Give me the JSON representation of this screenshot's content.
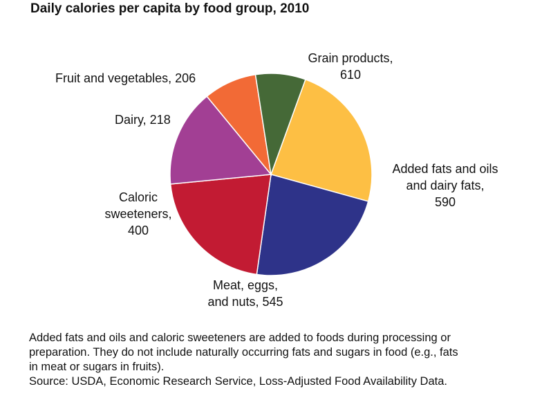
{
  "chart_data": {
    "type": "pie",
    "title": "Daily calories per capita by food group, 2010",
    "slices": [
      {
        "category": "Grain products",
        "value": 610,
        "color": "#FDBF44",
        "label_lines": [
          "Grain products,",
          "610"
        ]
      },
      {
        "category": "Added fats and oils and dairy fats",
        "value": 590,
        "color": "#2E3389",
        "label_lines": [
          "Added fats and oils",
          "and dairy fats,",
          "590"
        ]
      },
      {
        "category": "Meat, eggs, and nuts",
        "value": 545,
        "color": "#C21B33",
        "label_lines": [
          "Meat, eggs,",
          "and nuts, 545"
        ]
      },
      {
        "category": "Caloric sweeteners",
        "value": 400,
        "color": "#A23F94",
        "label_lines": [
          "Caloric",
          "sweeteners,",
          "400"
        ]
      },
      {
        "category": "Dairy",
        "value": 218,
        "color": "#F26A36",
        "label_lines": [
          "Dairy, 218"
        ]
      },
      {
        "category": "Fruit and vegetables",
        "value": 206,
        "color": "#456937",
        "label_lines": [
          "Fruit and vegetables, 206"
        ]
      }
    ]
  },
  "footnote": {
    "lines": [
      "Added fats and oils and caloric sweeteners are added to foods during processing or",
      "preparation. They do not include naturally occurring fats and sugars in food (e.g., fats",
      "in meat or sugars in fruits).",
      "Source: USDA, Economic Research Service, Loss-Adjusted Food Availability Data."
    ]
  }
}
